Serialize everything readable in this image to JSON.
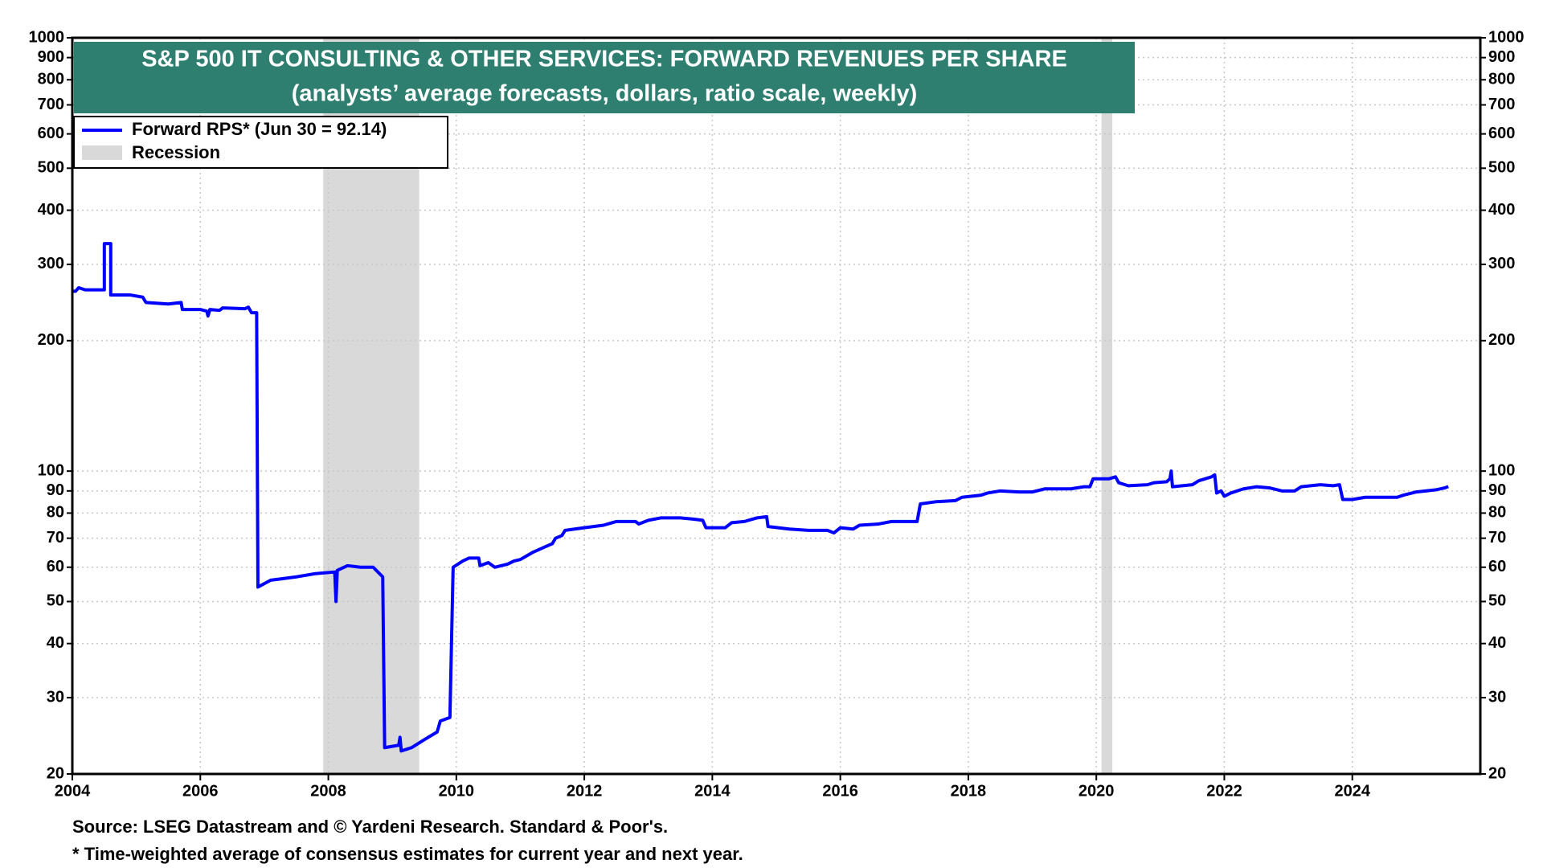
{
  "chart_data": {
    "type": "line",
    "title": "S&P 500 IT CONSULTING & OTHER SERVICES: FORWARD REVENUES PER SHARE",
    "subtitle": "(analysts’ average forecasts, dollars, ratio scale, weekly)",
    "source": "Source: LSEG Datastream and © Yardeni Research. Standard & Poor's.",
    "footnote": "* Time-weighted average of consensus estimates for current year and next year.",
    "log_scale": true,
    "grid": true,
    "legend_position": "upper left",
    "xlim": [
      2004,
      2026
    ],
    "xticks": [
      2004,
      2006,
      2008,
      2010,
      2012,
      2014,
      2016,
      2018,
      2020,
      2022,
      2024
    ],
    "ylim": [
      20,
      1000
    ],
    "yticks": [
      20,
      30,
      40,
      50,
      60,
      70,
      80,
      90,
      100,
      200,
      300,
      400,
      500,
      600,
      700,
      800,
      900,
      1000
    ],
    "recession": {
      "name": "Recession",
      "color": "#d9d9d9",
      "periods": [
        [
          2007.92,
          2009.42
        ],
        [
          2020.08,
          2020.25
        ]
      ]
    },
    "x": [
      2004.0,
      2004.05,
      2004.1,
      2004.2,
      2004.5,
      2004.5,
      2004.6,
      2004.6,
      2004.9,
      2005.1,
      2005.15,
      2005.5,
      2005.7,
      2005.72,
      2006.0,
      2006.1,
      2006.12,
      2006.15,
      2006.3,
      2006.35,
      2006.7,
      2006.75,
      2006.8,
      2006.88,
      2006.9,
      2007.0,
      2007.1,
      2007.3,
      2007.5,
      2007.8,
      2008.1,
      2008.12,
      2008.14,
      2008.3,
      2008.5,
      2008.7,
      2008.85,
      2008.88,
      2009.1,
      2009.12,
      2009.14,
      2009.3,
      2009.5,
      2009.7,
      2009.75,
      2009.9,
      2009.95,
      2010.1,
      2010.2,
      2010.35,
      2010.37,
      2010.5,
      2010.6,
      2010.8,
      2010.9,
      2011.0,
      2011.2,
      2011.4,
      2011.5,
      2011.55,
      2011.65,
      2011.7,
      2012.0,
      2012.3,
      2012.5,
      2012.8,
      2012.85,
      2013.0,
      2013.2,
      2013.5,
      2013.7,
      2013.85,
      2013.9,
      2014.0,
      2014.2,
      2014.3,
      2014.5,
      2014.7,
      2014.85,
      2014.87,
      2015.2,
      2015.5,
      2015.8,
      2015.9,
      2016.0,
      2016.2,
      2016.3,
      2016.6,
      2016.8,
      2017.2,
      2017.25,
      2017.5,
      2017.8,
      2017.9,
      2018.2,
      2018.3,
      2018.5,
      2018.8,
      2019.0,
      2019.2,
      2019.6,
      2019.8,
      2019.9,
      2019.95,
      2020.2,
      2020.3,
      2020.35,
      2020.5,
      2020.8,
      2020.9,
      2021.1,
      2021.15,
      2021.17,
      2021.19,
      2021.5,
      2021.6,
      2021.8,
      2021.85,
      2021.88,
      2021.95,
      2022.0,
      2022.1,
      2022.3,
      2022.5,
      2022.7,
      2022.9,
      2023.1,
      2023.2,
      2023.5,
      2023.7,
      2023.8,
      2023.85,
      2024.0,
      2024.2,
      2024.5,
      2024.7,
      2024.8,
      2025.0,
      2025.3,
      2025.45,
      2025.5
    ],
    "series": [
      {
        "name": "Forward RPS* (Jun 30 = 92.14)",
        "color": "#0000ff",
        "values": [
          260,
          260,
          265,
          262,
          262,
          335,
          335,
          255,
          255,
          252,
          245,
          243,
          245,
          236,
          236,
          234,
          228,
          236,
          235,
          238,
          237,
          239,
          232,
          232,
          54,
          55,
          56,
          56.5,
          57,
          58,
          58.5,
          50,
          59,
          60.5,
          60,
          60,
          57,
          23,
          23.3,
          24.3,
          22.6,
          23,
          24,
          25,
          26.5,
          27,
          60,
          62,
          63,
          63,
          60.5,
          61.5,
          60,
          61,
          62,
          62.5,
          65,
          67,
          68,
          70,
          71,
          73,
          74,
          75,
          76.5,
          76.5,
          75.5,
          77,
          78,
          78,
          77.5,
          77,
          74,
          74,
          74,
          76,
          76.5,
          78,
          78.5,
          74.5,
          73.5,
          73,
          73,
          72,
          74,
          73.5,
          75,
          75.5,
          76.5,
          76.5,
          84,
          85,
          85.5,
          87,
          88,
          89,
          90,
          89.5,
          89.5,
          91,
          91,
          92,
          92,
          96,
          96,
          97,
          94,
          92.5,
          93,
          94,
          94.5,
          96,
          100,
          92,
          93,
          95,
          97,
          98,
          89,
          90,
          87.5,
          89,
          91,
          92,
          91.5,
          90,
          90,
          92,
          93,
          92.5,
          93,
          86,
          86,
          87,
          87,
          87,
          88,
          89.5,
          90.5,
          91.5,
          92.14
        ]
      }
    ]
  }
}
